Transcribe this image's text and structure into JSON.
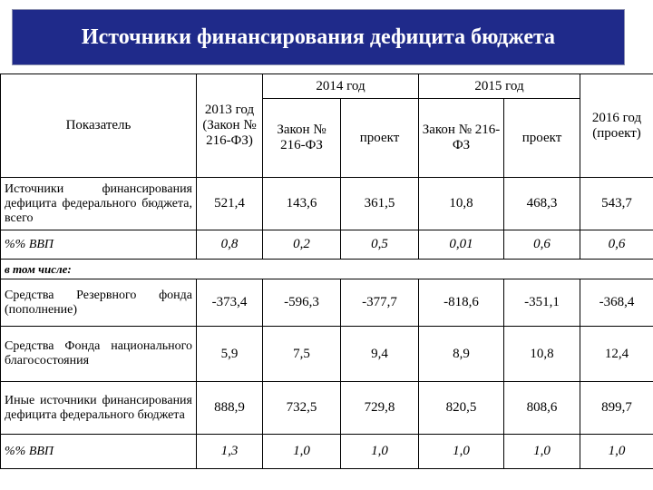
{
  "title": "Источники финансирования дефицита бюджета",
  "header": {
    "indicator": "Показатель",
    "y2013": "2013 год (Закон № 216-ФЗ)",
    "y2014": "2014 год",
    "y2015": "2015 год",
    "y2016": "2016 год (проект)",
    "law": "Закон № 216-ФЗ",
    "draft": "проект"
  },
  "rows": [
    {
      "label": "Источники финансирования дефицита федерального бюджета, всего",
      "values": [
        "521,4",
        "143,6",
        "361,5",
        "10,8",
        "468,3",
        "543,7"
      ]
    },
    {
      "label": "%% ВВП",
      "values": [
        "0,8",
        "0,2",
        "0,5",
        "0,01",
        "0,6",
        "0,6"
      ]
    },
    {
      "label": "Средства Резервного фонда (пополнение)",
      "values": [
        "-373,4",
        "-596,3",
        "-377,7",
        "-818,6",
        "-351,1",
        "-368,4"
      ]
    },
    {
      "label": "Средства Фонда национального благосостояния",
      "values": [
        "5,9",
        "7,5",
        "9,4",
        "8,9",
        "10,8",
        "12,4"
      ]
    },
    {
      "label": "Иные источники финансирования дефицита федерального бюджета",
      "values": [
        "888,9",
        "732,5",
        "729,8",
        "820,5",
        "808,6",
        "899,7"
      ]
    },
    {
      "label": "%% ВВП",
      "values": [
        "1,3",
        "1,0",
        "1,0",
        "1,0",
        "1,0",
        "1,0"
      ]
    }
  ],
  "section_label": "в том числе:"
}
